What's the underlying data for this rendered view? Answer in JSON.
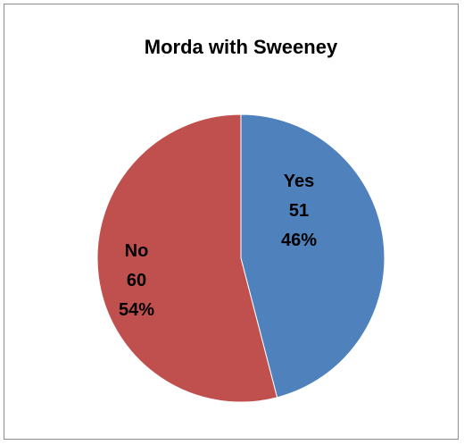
{
  "chart_data": {
    "type": "pie",
    "title": "Morda with Sweeney",
    "categories": [
      "Yes",
      "No"
    ],
    "values": [
      51,
      60
    ],
    "percent_labels": [
      "46%",
      "54%"
    ],
    "colors": [
      "#4f81bd",
      "#c0504d"
    ],
    "legend": "none"
  }
}
